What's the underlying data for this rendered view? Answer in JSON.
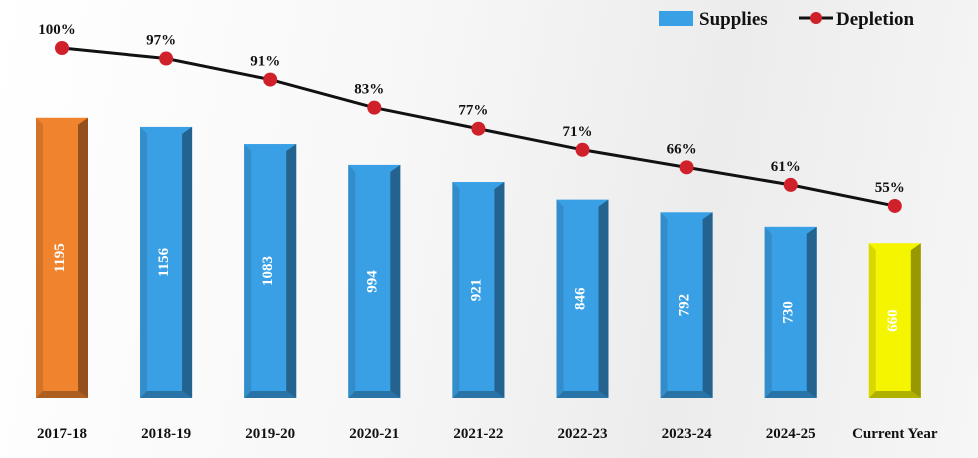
{
  "chart_data": {
    "type": "bar",
    "categories": [
      "2017-18",
      "2018-19",
      "2019-20",
      "2020-21",
      "2021-22",
      "2022-23",
      "2023-24",
      "2024-25",
      "Current Year"
    ],
    "series": [
      {
        "name": "Supplies",
        "type": "bar",
        "values": [
          1195,
          1156,
          1083,
          994,
          921,
          846,
          792,
          730,
          660
        ],
        "labels": [
          "1195",
          "1156",
          "1083",
          "994",
          "921",
          "846",
          "792",
          "730",
          "660"
        ]
      },
      {
        "name": "Depletion",
        "type": "line",
        "values": [
          100,
          97,
          91,
          83,
          77,
          71,
          66,
          61,
          55
        ],
        "labels": [
          "100%",
          "97%",
          "91%",
          "83%",
          "77%",
          "71%",
          "66%",
          "61%",
          "55%"
        ]
      }
    ],
    "bar_colors": [
      "#f0832e",
      "#3aa0e6",
      "#3aa0e6",
      "#3aa0e6",
      "#3aa0e6",
      "#3aa0e6",
      "#3aa0e6",
      "#3aa0e6",
      "#f5f500"
    ],
    "line_color": "#111111",
    "marker_color": "#d0202a",
    "legend": [
      "Supplies",
      "Depletion"
    ],
    "legend_position": "top-right",
    "grid": false
  }
}
